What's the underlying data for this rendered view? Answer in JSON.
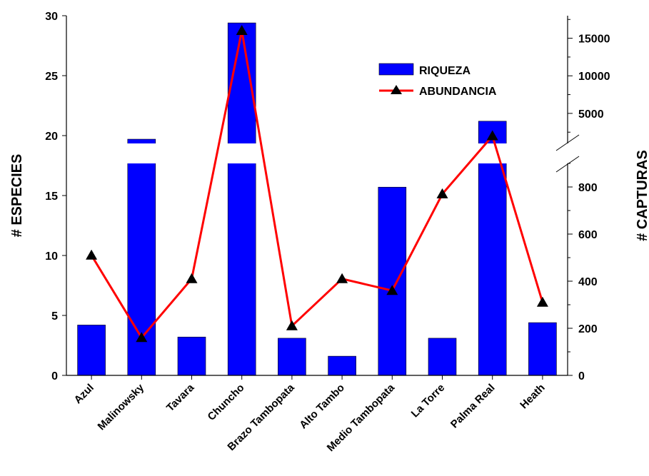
{
  "chart_data": {
    "type": "bar",
    "categories": [
      "Azul",
      "Malinowsky",
      "Tavara",
      "Chuncho",
      "Brazo Tambopata",
      "Alto Tambo",
      "Medio Tambopata",
      "La Torre",
      "Palma Real",
      "Heath"
    ],
    "series": [
      {
        "name": "RIQUEZA",
        "type": "bar",
        "axis": "left",
        "color": "#0000ff",
        "values": [
          4.2,
          19.7,
          3.2,
          29.4,
          3.1,
          1.6,
          15.7,
          3.1,
          21.2,
          4.4
        ]
      },
      {
        "name": "ABUNDANCIA",
        "type": "line",
        "axis": "right",
        "color": "#ff0000",
        "marker": "triangle",
        "values": [
          510,
          160,
          410,
          16000,
          210,
          410,
          360,
          770,
          2000,
          310
        ]
      }
    ],
    "ylabel": "# ESPECIES",
    "ylim": [
      0,
      30
    ],
    "yticks": [
      0,
      5,
      10,
      15,
      20,
      25,
      30
    ],
    "y2label": "# CAPTURAS",
    "y2_lower_ticks": [
      0,
      200,
      400,
      600,
      800
    ],
    "y2_upper_ticks": [
      5000,
      10000,
      15000
    ],
    "y2_lower_range": [
      0,
      900
    ],
    "y2_upper_range": [
      1000,
      18000
    ],
    "axis_break": true,
    "grid": false,
    "legend_position": "top-right"
  }
}
